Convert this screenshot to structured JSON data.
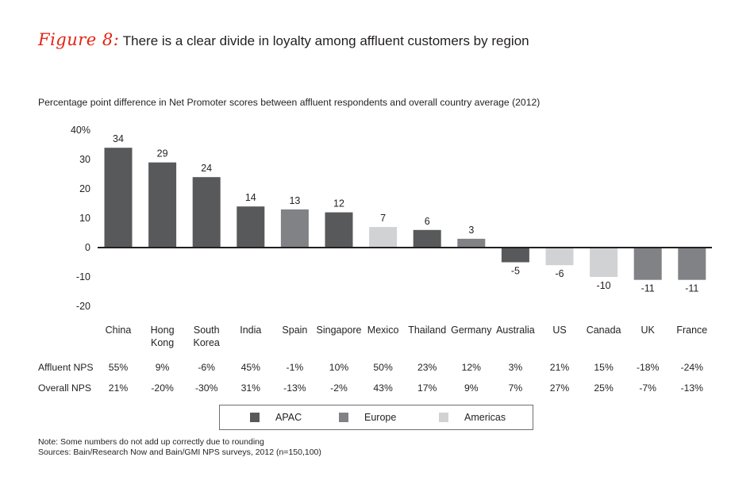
{
  "figure": {
    "label": "Figure 8:",
    "title": "There is a clear divide in loyalty among affluent customers by region"
  },
  "chart_data": {
    "type": "bar",
    "title": "There is a clear divide in loyalty among affluent customers by region",
    "subtitle": "Percentage point difference in Net Promoter scores between affluent respondents and overall country average (2012)",
    "categories": [
      "China",
      "Hong Kong",
      "South Korea",
      "India",
      "Spain",
      "Singapore",
      "Mexico",
      "Thailand",
      "Germany",
      "Australia",
      "US",
      "Canada",
      "UK",
      "France"
    ],
    "category_lines": [
      [
        "China"
      ],
      [
        "Hong",
        "Kong"
      ],
      [
        "South",
        "Korea"
      ],
      [
        "India"
      ],
      [
        "Spain"
      ],
      [
        "Singapore"
      ],
      [
        "Mexico"
      ],
      [
        "Thailand"
      ],
      [
        "Germany"
      ],
      [
        "Australia"
      ],
      [
        "US"
      ],
      [
        "Canada"
      ],
      [
        "UK"
      ],
      [
        "France"
      ]
    ],
    "values": [
      34,
      29,
      24,
      14,
      13,
      12,
      7,
      6,
      3,
      -5,
      -6,
      -10,
      -11,
      -11
    ],
    "data_labels": [
      "34",
      "29",
      "24",
      "14",
      "13",
      "12",
      "7",
      "6",
      "3",
      "-5",
      "-6",
      "-10",
      "-11",
      "-11"
    ],
    "regions": [
      "APAC",
      "APAC",
      "APAC",
      "APAC",
      "Europe",
      "APAC",
      "Americas",
      "APAC",
      "Europe",
      "APAC",
      "Americas",
      "Americas",
      "Europe",
      "Europe"
    ],
    "ylim": [
      -20,
      40
    ],
    "yticks": [
      -20,
      -10,
      0,
      10,
      20,
      30,
      40
    ],
    "ytick_labels": [
      "-20",
      "-10",
      "0",
      "10",
      "20",
      "30",
      "40%"
    ],
    "grid": false,
    "legend_position": "bottom",
    "legend": [
      {
        "name": "APAC",
        "color": "#58595b"
      },
      {
        "name": "Europe",
        "color": "#818285"
      },
      {
        "name": "Americas",
        "color": "#d1d2d4"
      }
    ]
  },
  "table": {
    "rows": [
      {
        "label": "Affluent NPS",
        "values": [
          "55%",
          "9%",
          "-6%",
          "45%",
          "-1%",
          "10%",
          "50%",
          "23%",
          "12%",
          "3%",
          "21%",
          "15%",
          "-18%",
          "-24%"
        ]
      },
      {
        "label": "Overall NPS",
        "values": [
          "21%",
          "-20%",
          "-30%",
          "31%",
          "-13%",
          "-2%",
          "43%",
          "17%",
          "9%",
          "7%",
          "27%",
          "25%",
          "-7%",
          "-13%"
        ]
      }
    ]
  },
  "notes": {
    "note": "Note: Some numbers do not add up correctly due to rounding",
    "sources": "Sources: Bain/Research Now and Bain/GMI NPS surveys, 2012 (n=150,100)"
  }
}
